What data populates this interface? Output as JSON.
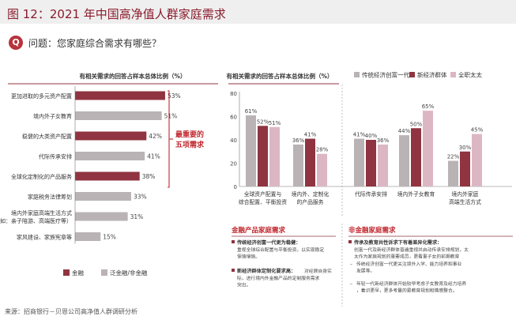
{
  "header": {
    "title": "图 12：2021 年中国高净值人群家庭需求"
  },
  "question": {
    "icon": "question-icon",
    "text": "问题：您家庭综合需求有哪些？"
  },
  "source": "来源：招商银行－贝恩公司高净值人群调研分析",
  "colors": {
    "brand": "#8a1b2c",
    "bar_primary": "#8f3440",
    "bar_secondary": "#b9b3b5",
    "pink": "#dcb7c3",
    "accent_red": "#c0272d"
  },
  "left_chart": {
    "title": "有相关需求的回答占样本总体比例（%）",
    "callout": [
      "最重要的",
      "五项需求"
    ]
  },
  "right_panel": {
    "left_box": {
      "title": "金融产品家庭需求",
      "para1_head": "传统经济创富一代更为稳健：",
      "para1_body": [
        "重视全球综合配置与平衡投资，以实现稳定",
        "保值增值。"
      ],
      "para2_head": "新经济群体定制化要求高：",
      "para2_body": [
        "对经顾自身实",
        "际，进行境内外金融产品的定制服务需求",
        "突出。"
      ]
    },
    "right_box": {
      "title": "非金融家庭需求",
      "head": "传承及教育共性诉求下有着差异化需求：",
      "lines": [
        "创富一代及新经济群体普遍重视并启动传承安排规划，太",
        "太作为家庭规划的重要成员，更看重子女的前期教育"
      ],
      "bullet1": [
        "传统经济创富一代更关注境外入学、能力培养和事业",
        "发展等。"
      ],
      "bullet2": [
        "年轻一代新经济群体开始较早考虑子女教育及经力培养",
        "，着识更早，更多考量的是教育规划和情感整合。"
      ]
    }
  },
  "chart_data": [
    {
      "type": "bar",
      "orientation": "horizontal",
      "title": "有相关需求的回答占样本总体比例（%）",
      "categories": [
        "更加进取的多元资产配置",
        "境内外子女教育",
        "稳健的大类资产配置",
        "代际传承安排",
        "全球化定制化的产品服务",
        "家庭税务法律筹划",
        [
          "境内外家庭高端生活方式",
          "（如：亲子陪游、高端医疗等）"
        ],
        "家风建设、家族宪章等"
      ],
      "values": [
        53,
        51,
        42,
        41,
        38,
        33,
        31,
        15
      ],
      "value_labels": [
        "53%",
        "51%",
        "42%",
        "41%",
        "38%",
        "33%",
        "31%",
        "15%"
      ],
      "bar_groups": [
        "金融",
        "泛金融/非金融",
        "金融",
        "泛金融/非金融",
        "金融",
        "泛金融/非金融",
        "泛金融/非金融",
        "泛金融/非金融"
      ],
      "legend": [
        {
          "name": "金融",
          "color": "#8f3440"
        },
        {
          "name": "泛金融/非金融",
          "color": "#b9b3b5"
        }
      ],
      "xlim": [
        0,
        60
      ],
      "legend_position": "bottom-left",
      "grid": false
    },
    {
      "type": "bar",
      "title": "有相关需求的回答占样本总体比例（%）",
      "categories": [
        [
          "全球资产配置与",
          "综合配置、平衡投资"
        ],
        [
          "境内外、定制化",
          "的产品服务"
        ],
        [
          "代际传承安排"
        ],
        [
          "境内外子女教育"
        ],
        [
          "境内外家庭",
          "高端生活方式"
        ]
      ],
      "series": [
        {
          "name": "传统经济创富一代",
          "color": "#b9b3b5",
          "values": [
            61,
            36,
            41,
            44,
            22
          ],
          "labels": [
            "61%",
            "36%",
            "41%",
            "44%",
            "22%"
          ]
        },
        {
          "name": "新经济群体",
          "color": "#8f3440",
          "values": [
            52,
            41,
            40,
            50,
            30
          ],
          "labels": [
            "52%",
            "41%",
            "40%",
            "50%",
            "30%"
          ]
        },
        {
          "name": "全职太太",
          "color": "#dcb7c3",
          "values": [
            51,
            28,
            36,
            65,
            45
          ],
          "labels": [
            "51%",
            "28%",
            "36%",
            "65%",
            "45%"
          ]
        }
      ],
      "ylim": [
        0,
        80
      ],
      "yticks": [
        0,
        20,
        40,
        60,
        80
      ],
      "ytick_labels": [
        "0",
        "20",
        "40",
        "60",
        "80"
      ],
      "legend_position": "top-right",
      "grid": false
    }
  ]
}
